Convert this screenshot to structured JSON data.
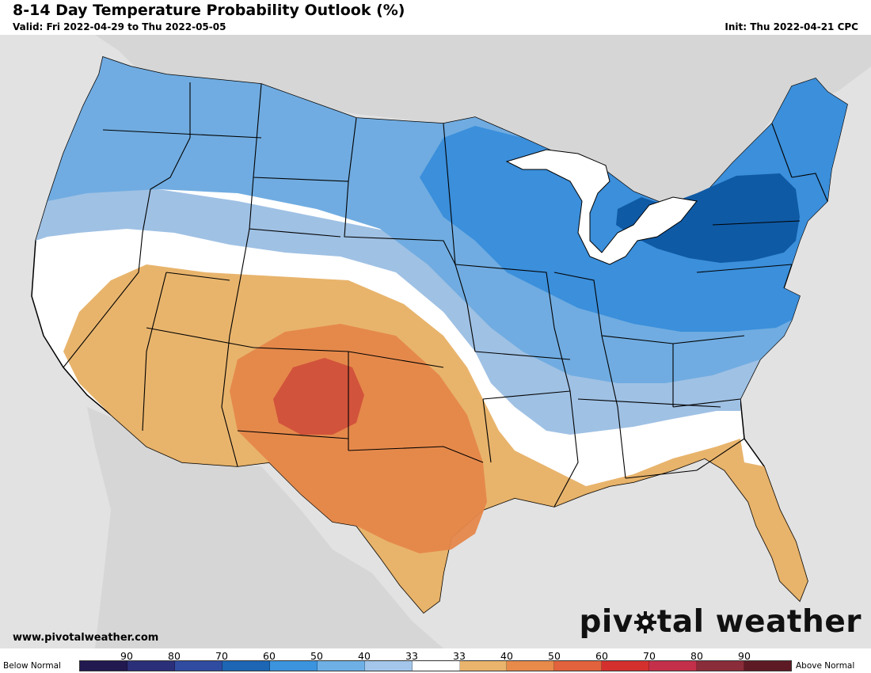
{
  "header": {
    "title": "8-14 Day Temperature Probability Outlook (%)",
    "valid": "Valid: Fri 2022-04-29 to Thu 2022-05-05",
    "init": "Init: Thu 2022-04-21 CPC"
  },
  "footer": {
    "site_url": "www.pivotalweather.com",
    "brand_left": "piv",
    "brand_right": "tal weather",
    "brand_icon": "gear-icon"
  },
  "map": {
    "background_color": "#e2e2e2",
    "land_color": "#ffffff",
    "outline_color": "#000000",
    "regions": [
      {
        "category": "below",
        "probability": "33-40",
        "color": "#9fc1e4"
      },
      {
        "category": "below",
        "probability": "40-50",
        "color": "#70ace1"
      },
      {
        "category": "below",
        "probability": "50-60",
        "color": "#3b8fdb"
      },
      {
        "category": "below",
        "probability": "60-70",
        "color": "#0f5aa5"
      },
      {
        "category": "near",
        "probability": "33",
        "color": "#ffffff"
      },
      {
        "category": "above",
        "probability": "40-50",
        "color": "#e7b064"
      },
      {
        "category": "above",
        "probability": "50-60",
        "color": "#e5874a"
      },
      {
        "category": "above",
        "probability": "60-70",
        "color": "#d1503a"
      }
    ]
  },
  "legend": {
    "left_label": "Below Normal",
    "right_label": "Above Normal",
    "tick_labels": [
      "90",
      "80",
      "70",
      "60",
      "50",
      "40",
      "33",
      "33",
      "40",
      "50",
      "60",
      "70",
      "80",
      "90"
    ],
    "colors": [
      "#21194f",
      "#2b2e78",
      "#2f4ca0",
      "#1c66b3",
      "#3c93de",
      "#6eb0e6",
      "#a4c6ea",
      "#ffffff",
      "#eab46c",
      "#e88a4a",
      "#e1623c",
      "#d3302e",
      "#c4304a",
      "#8b2c3a",
      "#5e1a24"
    ]
  }
}
